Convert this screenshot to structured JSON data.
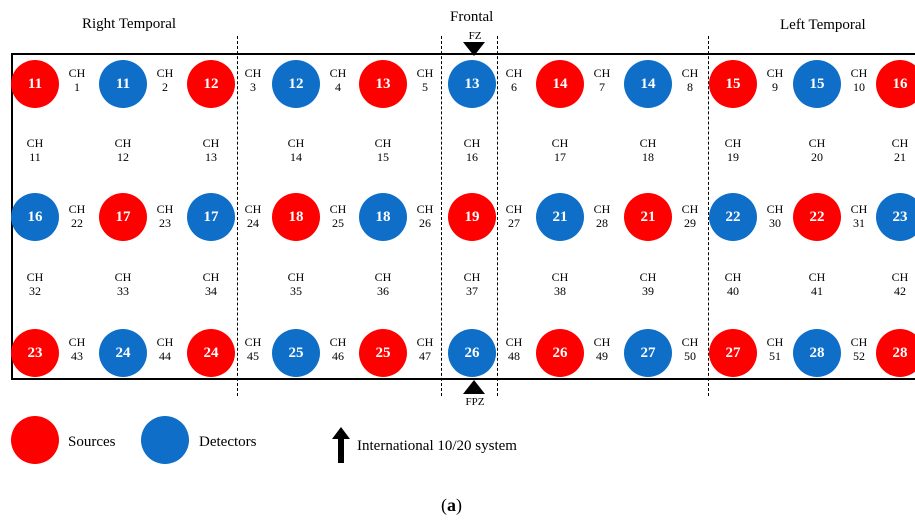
{
  "regions": {
    "right": "Right Temporal",
    "center": "Frontal",
    "left": "Left Temporal"
  },
  "markers": {
    "top": "FZ",
    "bottom": "FPZ"
  },
  "channel_prefix": "CH",
  "optode_rows": [
    [
      {
        "label": "11",
        "type": "source"
      },
      {
        "label": "11",
        "type": "detector"
      },
      {
        "label": "12",
        "type": "source"
      },
      {
        "label": "12",
        "type": "detector"
      },
      {
        "label": "13",
        "type": "source"
      },
      {
        "label": "13",
        "type": "detector"
      },
      {
        "label": "14",
        "type": "source"
      },
      {
        "label": "14",
        "type": "detector"
      },
      {
        "label": "15",
        "type": "source"
      },
      {
        "label": "15",
        "type": "detector"
      },
      {
        "label": "16",
        "type": "source"
      }
    ],
    [
      {
        "label": "16",
        "type": "detector"
      },
      {
        "label": "17",
        "type": "source"
      },
      {
        "label": "17",
        "type": "detector"
      },
      {
        "label": "18",
        "type": "source"
      },
      {
        "label": "18",
        "type": "detector"
      },
      {
        "label": "19",
        "type": "source"
      },
      {
        "label": "21",
        "type": "detector"
      },
      {
        "label": "21",
        "type": "source"
      },
      {
        "label": "22",
        "type": "detector"
      },
      {
        "label": "22",
        "type": "source"
      },
      {
        "label": "23",
        "type": "detector"
      }
    ],
    [
      {
        "label": "23",
        "type": "source"
      },
      {
        "label": "24",
        "type": "detector"
      },
      {
        "label": "24",
        "type": "source"
      },
      {
        "label": "25",
        "type": "detector"
      },
      {
        "label": "25",
        "type": "source"
      },
      {
        "label": "26",
        "type": "detector"
      },
      {
        "label": "26",
        "type": "source"
      },
      {
        "label": "27",
        "type": "detector"
      },
      {
        "label": "27",
        "type": "source"
      },
      {
        "label": "28",
        "type": "detector"
      },
      {
        "label": "28",
        "type": "source"
      }
    ]
  ],
  "channel_rows": [
    [
      "1",
      "2",
      "3",
      "4",
      "5",
      "6",
      "7",
      "8",
      "9",
      "10"
    ],
    [
      "11",
      "12",
      "13",
      "14",
      "15",
      "16",
      "17",
      "18",
      "19",
      "20",
      "21"
    ],
    [
      "22",
      "23",
      "24",
      "25",
      "26",
      "27",
      "28",
      "29",
      "30",
      "31"
    ],
    [
      "32",
      "33",
      "34",
      "35",
      "36",
      "37",
      "38",
      "39",
      "40",
      "41",
      "42"
    ],
    [
      "43",
      "44",
      "45",
      "46",
      "47",
      "48",
      "49",
      "50",
      "51",
      "52"
    ]
  ],
  "legend": {
    "sources": "Sources",
    "detectors": "Detectors",
    "system": "International 10/20 system"
  },
  "caption": {
    "open": "(",
    "letter": "a",
    "close": ")"
  },
  "colors": {
    "source": "#ff0000",
    "detector": "#0e6ec8"
  }
}
